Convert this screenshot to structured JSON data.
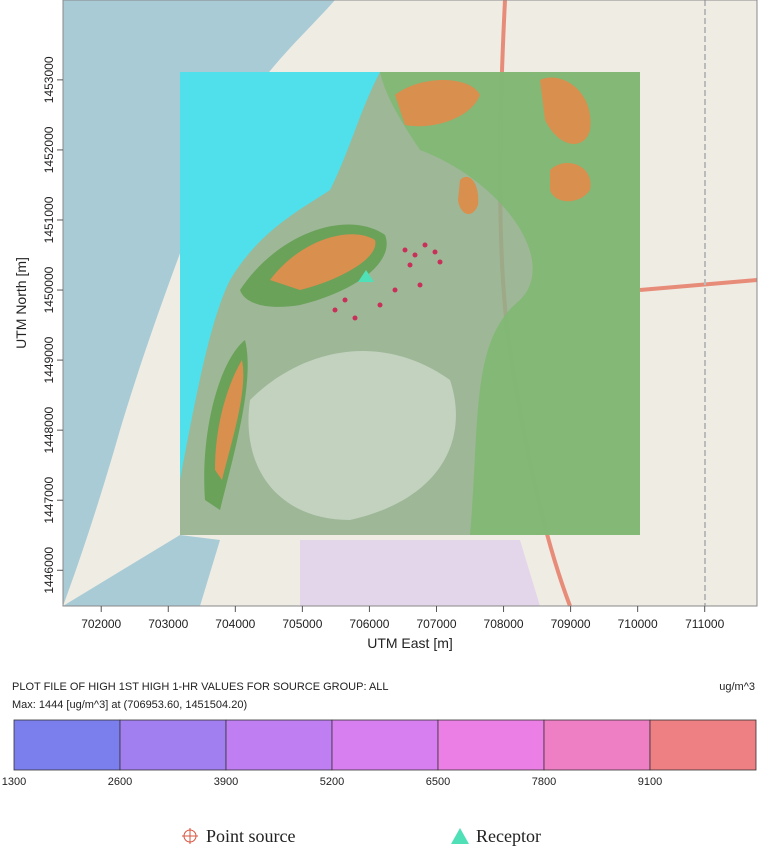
{
  "map": {
    "x_label": "UTM East [m]",
    "y_label": "UTM North [m]",
    "xlim": [
      701430,
      711780
    ],
    "ylim": [
      1445490,
      1454140
    ],
    "xticks": [
      702000,
      703000,
      704000,
      705000,
      706000,
      707000,
      708000,
      709000,
      710000,
      711000
    ],
    "yticks": [
      1446000,
      1447000,
      1448000,
      1449000,
      1450000,
      1451000,
      1452000,
      1453000
    ]
  },
  "plot_info": {
    "title": "PLOT FILE OF HIGH 1ST HIGH 1-HR VALUES FOR SOURCE GROUP: ALL",
    "units": "ug/m^3",
    "max_text": "Max:  1444  [ug/m^3]  at  (706953.60, 1451504.20)"
  },
  "colorbar": {
    "levels": [
      1300,
      2600,
      3900,
      5200,
      6500,
      7800,
      9100
    ],
    "colors": [
      "#7b7fee",
      "#a27ff0",
      "#bf7ff2",
      "#d77ff0",
      "#ec7fe6",
      "#ef7fc4",
      "#ee7f82"
    ]
  },
  "legend": {
    "point_source": "Point source",
    "receptor": "Receptor"
  }
}
